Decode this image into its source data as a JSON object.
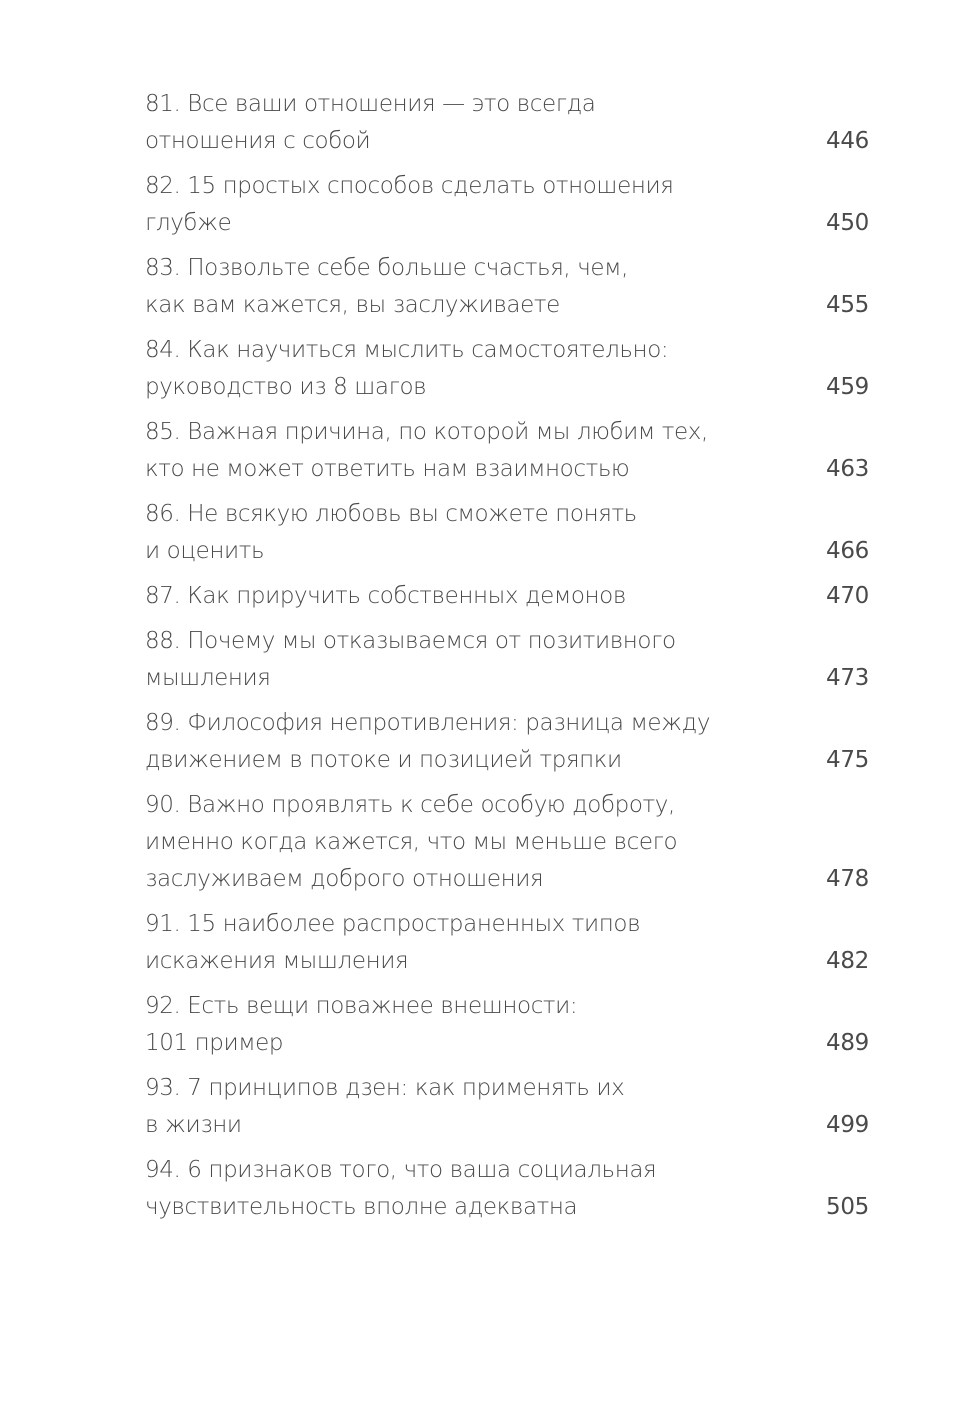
{
  "toc": [
    {
      "lines": [
        "81. Все ваши отношения — это всегда",
        "отношения с собой"
      ],
      "page": "446"
    },
    {
      "lines": [
        "82. 15 простых способов сделать отношения",
        "глубже"
      ],
      "page": "450"
    },
    {
      "lines": [
        "83. Позвольте себе больше счастья, чем,",
        "как вам кажется, вы заслуживаете"
      ],
      "page": "455"
    },
    {
      "lines": [
        "84. Как научиться мыслить самостоятельно:",
        "руководство из 8 шагов"
      ],
      "page": "459"
    },
    {
      "lines": [
        "85. Важная причина, по которой мы любим тех,",
        "кто не может ответить нам взаимностью"
      ],
      "page": "463"
    },
    {
      "lines": [
        "86. Не всякую любовь вы сможете понять",
        "и оценить"
      ],
      "page": "466"
    },
    {
      "lines": [
        "87. Как приручить собственных демонов"
      ],
      "page": "470"
    },
    {
      "lines": [
        "88. Почему мы отказываемся от позитивного",
        "мышления"
      ],
      "page": "473"
    },
    {
      "lines": [
        "89. Философия непротивления: разница между",
        "движением в потоке и позицией тряпки"
      ],
      "page": "475"
    },
    {
      "lines": [
        "90. Важно проявлять к себе особую доброту,",
        "именно когда кажется, что мы меньше всего",
        "заслуживаем доброго отношения"
      ],
      "page": "478"
    },
    {
      "lines": [
        "91. 15 наиболее распространенных типов",
        "искажения мышления"
      ],
      "page": "482"
    },
    {
      "lines": [
        "92. Есть вещи поважнее внешности:",
        "101 пример"
      ],
      "page": "489"
    },
    {
      "lines": [
        "93. 7 принципов дзен: как применять их",
        "в жизни"
      ],
      "page": "499"
    },
    {
      "lines": [
        "94. 6 признаков того, что ваша социальная",
        "чувствительность вполне адекватна"
      ],
      "page": "505"
    }
  ]
}
